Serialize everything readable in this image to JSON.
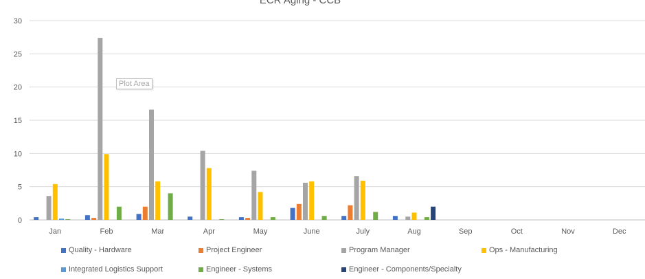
{
  "chart_data": {
    "type": "bar",
    "title": "ECR Aging - CCB",
    "xlabel": "",
    "ylabel": "",
    "ylim": [
      0,
      30
    ],
    "yticks": [
      0,
      5,
      10,
      15,
      20,
      25,
      30
    ],
    "grid": true,
    "legend_position": "bottom",
    "categories": [
      "Jan",
      "Feb",
      "Mar",
      "Apr",
      "May",
      "June",
      "July",
      "Aug",
      "Sep",
      "Oct",
      "Nov",
      "Dec"
    ],
    "series": [
      {
        "name": "Quality - Hardware",
        "color": "#4472c4",
        "values": [
          0.4,
          0.7,
          0.9,
          0.5,
          0.4,
          1.8,
          0.6,
          0.6,
          0,
          0,
          0,
          0
        ]
      },
      {
        "name": "Project Engineer",
        "color": "#ed7d31",
        "values": [
          0,
          0.3,
          2.0,
          0,
          0.3,
          2.4,
          2.2,
          0,
          0,
          0,
          0,
          0
        ]
      },
      {
        "name": "Program Manager",
        "color": "#a5a5a5",
        "values": [
          3.6,
          27.4,
          16.6,
          10.4,
          7.4,
          5.6,
          6.6,
          0.5,
          0,
          0,
          0,
          0
        ]
      },
      {
        "name": "Ops - Manufacturing",
        "color": "#ffc000",
        "values": [
          5.4,
          9.9,
          5.8,
          7.8,
          4.2,
          5.8,
          5.9,
          1.1,
          0,
          0,
          0,
          0
        ]
      },
      {
        "name": "Integrated Logistics Support",
        "color": "#5b9bd5",
        "values": [
          0.2,
          0,
          0,
          0,
          0,
          0,
          0,
          0,
          0,
          0,
          0,
          0
        ]
      },
      {
        "name": "Engineer - Systems",
        "color": "#70ad47",
        "values": [
          0.1,
          2.0,
          4.0,
          0.1,
          0.4,
          0.6,
          1.2,
          0.4,
          0,
          0,
          0,
          0
        ]
      },
      {
        "name": "Engineer - Components/Specialty",
        "color": "#264478",
        "values": [
          0,
          0,
          0,
          0,
          0,
          0,
          0,
          2.0,
          0,
          0,
          0,
          0
        ]
      }
    ]
  },
  "tooltip": {
    "label": "Plot Area"
  }
}
